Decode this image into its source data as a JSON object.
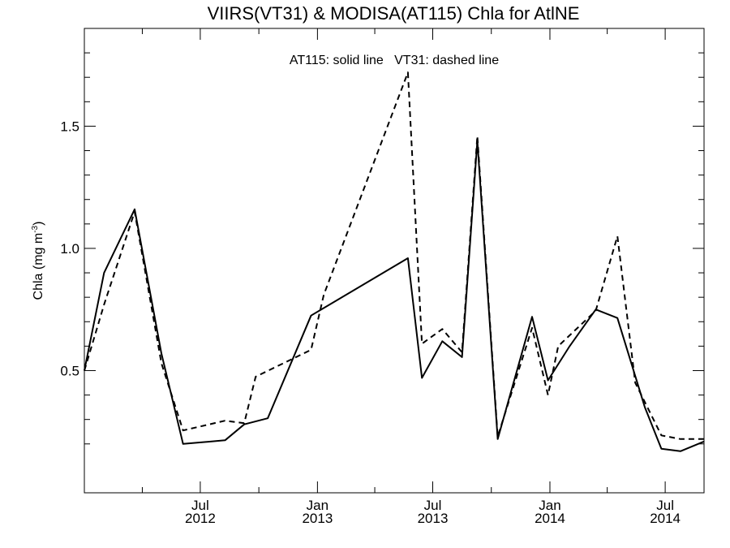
{
  "chart_data": {
    "type": "line",
    "title": "VIIRS(VT31) & MODISA(AT115)  Chla for AtlNE",
    "ylabel": "Chla (mg m",
    "ylabel_sup": "-3",
    "ylabel_end": ")",
    "xlabel": "",
    "annotation": "AT115: solid line   VT31: dashed line",
    "ylim": [
      0.0,
      1.9
    ],
    "xlim": [
      "2012-01-01",
      "2014-08-31"
    ],
    "grid": false,
    "y_ticks": [
      {
        "value": 0.5,
        "label": "0.5"
      },
      {
        "value": 1.0,
        "label": "1.0"
      },
      {
        "value": 1.5,
        "label": "1.5"
      }
    ],
    "y_minor_ticks": [
      0.2,
      0.3,
      0.4,
      0.6,
      0.7,
      0.8,
      0.9,
      1.1,
      1.2,
      1.3,
      1.4,
      1.6,
      1.7,
      1.8
    ],
    "x_ticks": [
      {
        "date": "2012-07-01",
        "month": "Jul",
        "year": "2012"
      },
      {
        "date": "2013-01-01",
        "month": "Jan",
        "year": "2013"
      },
      {
        "date": "2013-07-01",
        "month": "Jul",
        "year": "2013"
      },
      {
        "date": "2014-01-01",
        "month": "Jan",
        "year": "2014"
      },
      {
        "date": "2014-07-01",
        "month": "Jul",
        "year": "2014"
      }
    ],
    "x_minor_ticks": [
      "2012-04-01",
      "2012-10-01",
      "2013-04-01",
      "2013-10-01",
      "2014-04-01"
    ],
    "series": [
      {
        "name": "AT115",
        "style": "solid",
        "color": "#000000",
        "points": [
          {
            "x": "2012-01-01",
            "y": 0.5
          },
          {
            "x": "2012-02-01",
            "y": 0.9
          },
          {
            "x": "2012-03-20",
            "y": 1.16
          },
          {
            "x": "2012-05-01",
            "y": 0.57
          },
          {
            "x": "2012-06-04",
            "y": 0.2
          },
          {
            "x": "2012-08-09",
            "y": 0.215
          },
          {
            "x": "2012-09-08",
            "y": 0.28
          },
          {
            "x": "2012-10-15",
            "y": 0.305
          },
          {
            "x": "2012-12-22",
            "y": 0.725
          },
          {
            "x": "2013-05-23",
            "y": 0.96
          },
          {
            "x": "2013-06-14",
            "y": 0.47
          },
          {
            "x": "2013-07-16",
            "y": 0.62
          },
          {
            "x": "2013-08-16",
            "y": 0.555
          },
          {
            "x": "2013-09-09",
            "y": 1.44
          },
          {
            "x": "2013-10-11",
            "y": 0.22
          },
          {
            "x": "2013-12-04",
            "y": 0.72
          },
          {
            "x": "2013-12-29",
            "y": 0.46
          },
          {
            "x": "2014-02-01",
            "y": 0.6
          },
          {
            "x": "2014-03-14",
            "y": 0.75
          },
          {
            "x": "2014-04-17",
            "y": 0.715
          },
          {
            "x": "2014-05-30",
            "y": 0.35
          },
          {
            "x": "2014-06-25",
            "y": 0.18
          },
          {
            "x": "2014-07-25",
            "y": 0.17
          },
          {
            "x": "2014-08-31",
            "y": 0.21
          }
        ]
      },
      {
        "name": "VT31",
        "style": "dashed",
        "color": "#000000",
        "points": [
          {
            "x": "2012-01-01",
            "y": 0.5
          },
          {
            "x": "2012-02-01",
            "y": 0.77
          },
          {
            "x": "2012-03-20",
            "y": 1.15
          },
          {
            "x": "2012-05-01",
            "y": 0.53
          },
          {
            "x": "2012-06-04",
            "y": 0.255
          },
          {
            "x": "2012-08-09",
            "y": 0.295
          },
          {
            "x": "2012-09-08",
            "y": 0.285
          },
          {
            "x": "2012-09-26",
            "y": 0.475
          },
          {
            "x": "2012-12-22",
            "y": 0.585
          },
          {
            "x": "2013-01-11",
            "y": 0.81
          },
          {
            "x": "2013-05-23",
            "y": 1.72
          },
          {
            "x": "2013-06-14",
            "y": 0.61
          },
          {
            "x": "2013-07-16",
            "y": 0.67
          },
          {
            "x": "2013-08-16",
            "y": 0.575
          },
          {
            "x": "2013-09-09",
            "y": 1.46
          },
          {
            "x": "2013-10-11",
            "y": 0.23
          },
          {
            "x": "2013-12-04",
            "y": 0.675
          },
          {
            "x": "2013-12-29",
            "y": 0.4
          },
          {
            "x": "2014-01-14",
            "y": 0.6
          },
          {
            "x": "2014-03-14",
            "y": 0.745
          },
          {
            "x": "2014-04-17",
            "y": 1.05
          },
          {
            "x": "2014-05-15",
            "y": 0.45
          },
          {
            "x": "2014-06-25",
            "y": 0.235
          },
          {
            "x": "2014-07-25",
            "y": 0.22
          },
          {
            "x": "2014-08-31",
            "y": 0.22
          }
        ]
      }
    ]
  }
}
